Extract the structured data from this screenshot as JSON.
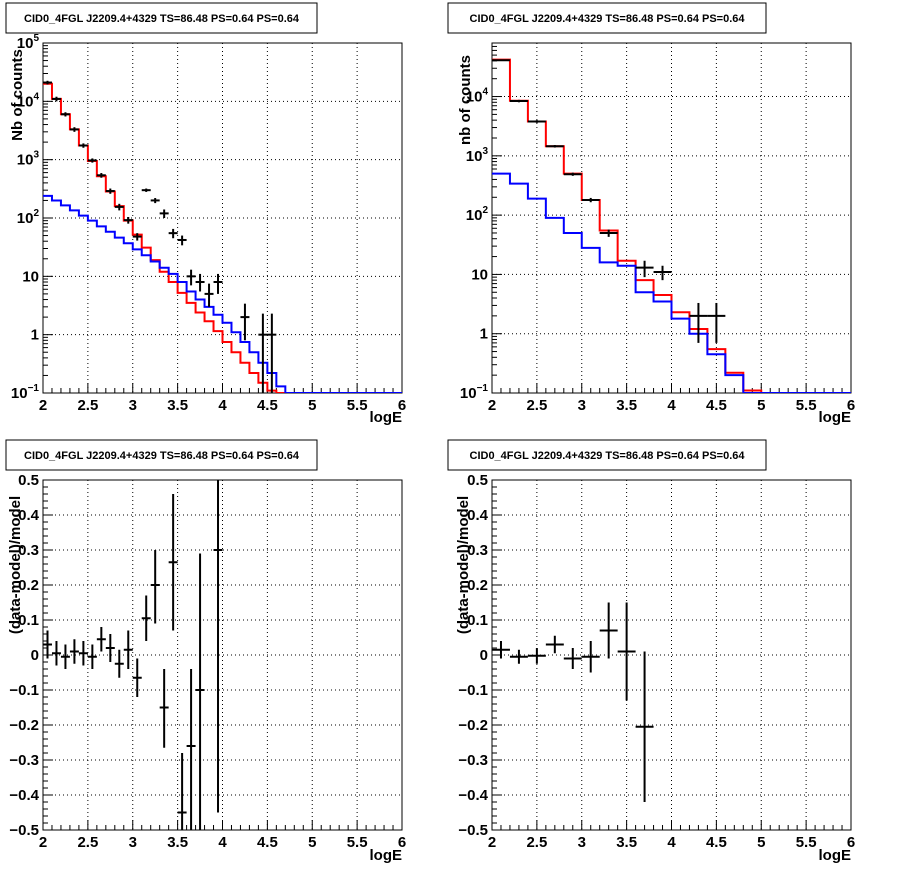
{
  "chart_data": [
    {
      "type": "line",
      "title": "CID0_4FGL J2209.4+4329 TS=86.48 PS=0.64 PS=0.64",
      "xlabel": "logE",
      "ylabel": "Nb of counts",
      "xlim": [
        2,
        6
      ],
      "ylim": [
        0.1,
        100000
      ],
      "yscale": "log",
      "grid": true,
      "x_ticks": [
        "2",
        "2.5",
        "3",
        "3.5",
        "4",
        "4.5",
        "5",
        "5.5",
        "6"
      ],
      "y_ticks": [
        {
          "v": 0.1,
          "label": "10",
          "sup": "−1"
        },
        {
          "v": 1,
          "label": "1",
          "sup": ""
        },
        {
          "v": 10,
          "label": "10",
          "sup": ""
        },
        {
          "v": 100,
          "label": "10",
          "sup": "2"
        },
        {
          "v": 1000,
          "label": "10",
          "sup": "3"
        },
        {
          "v": 10000,
          "label": "10",
          "sup": "4"
        },
        {
          "v": 100000,
          "label": "10",
          "sup": "5"
        }
      ],
      "bin_edges": [
        2.0,
        2.1,
        2.2,
        2.3,
        2.4,
        2.5,
        2.6,
        2.7,
        2.8,
        2.9,
        3.0,
        3.1,
        3.2,
        3.3,
        3.4,
        3.5,
        3.6,
        3.7,
        3.8,
        3.9,
        4.0,
        4.1,
        4.2,
        4.3,
        4.4,
        4.5,
        4.6,
        4.7,
        4.8,
        4.9,
        5.0,
        5.1,
        5.2,
        5.3,
        5.4,
        5.5,
        5.6,
        5.7,
        5.8,
        5.9,
        6.0
      ],
      "series": [
        {
          "color": "#ff0000",
          "kind": "step",
          "values": [
            20000,
            11000,
            6000,
            3300,
            1750,
            950,
            520,
            285,
            160,
            90,
            52,
            31,
            19,
            12,
            8,
            5.2,
            3.5,
            2.4,
            1.7,
            1.15,
            0.75,
            0.5,
            0.33,
            0.22,
            0.15,
            0.11,
            0.1,
            0.1,
            0.1,
            0.1,
            0.1,
            0.1,
            0.1,
            0.1,
            0.1,
            0.1,
            0.1,
            0.1,
            0.1,
            0.1
          ]
        },
        {
          "color": "#0000ff",
          "kind": "step",
          "values": [
            240,
            200,
            165,
            135,
            110,
            90,
            72,
            58,
            46,
            37,
            29,
            23,
            18,
            14,
            11,
            8,
            5.5,
            4,
            3,
            2.2,
            1.6,
            1.1,
            0.75,
            0.5,
            0.33,
            0.22,
            0.13,
            0.1,
            0.1,
            0.1,
            0.1,
            0.1,
            0.1,
            0.1,
            0.1,
            0.1,
            0.1,
            0.1,
            0.1,
            0.1
          ]
        },
        {
          "color": "#000000",
          "kind": "points",
          "points": [
            {
              "x": 2.05,
              "y": 21000,
              "lo": 19500,
              "hi": 22500
            },
            {
              "x": 2.15,
              "y": 11000,
              "lo": 10000,
              "hi": 12000
            },
            {
              "x": 2.25,
              "y": 6000,
              "lo": 5500,
              "hi": 6500
            },
            {
              "x": 2.35,
              "y": 3300,
              "lo": 3000,
              "hi": 3600
            },
            {
              "x": 2.45,
              "y": 1750,
              "lo": 1600,
              "hi": 1900
            },
            {
              "x": 2.55,
              "y": 970,
              "lo": 890,
              "hi": 1050
            },
            {
              "x": 2.65,
              "y": 540,
              "lo": 490,
              "hi": 590
            },
            {
              "x": 2.75,
              "y": 290,
              "lo": 260,
              "hi": 320
            },
            {
              "x": 2.85,
              "y": 155,
              "lo": 135,
              "hi": 175
            },
            {
              "x": 2.95,
              "y": 92,
              "lo": 80,
              "hi": 104
            },
            {
              "x": 3.05,
              "y": 48,
              "lo": 41,
              "hi": 55
            },
            {
              "x": 3.15,
              "y": 300,
              "lo": 280,
              "hi": 320
            },
            {
              "x": 3.25,
              "y": 200,
              "lo": 180,
              "hi": 220
            },
            {
              "x": 3.35,
              "y": 120,
              "lo": 100,
              "hi": 140
            },
            {
              "x": 3.45,
              "y": 55,
              "lo": 45,
              "hi": 65
            },
            {
              "x": 3.55,
              "y": 42,
              "lo": 34,
              "hi": 50
            },
            {
              "x": 3.65,
              "y": 10,
              "lo": 7,
              "hi": 13
            },
            {
              "x": 3.75,
              "y": 8,
              "lo": 5.5,
              "hi": 11
            },
            {
              "x": 3.85,
              "y": 5,
              "lo": 3,
              "hi": 7.5
            },
            {
              "x": 3.95,
              "y": 8,
              "lo": 5,
              "hi": 11
            },
            {
              "x": 4.25,
              "y": 2,
              "lo": 0.8,
              "hi": 3.4
            },
            {
              "x": 4.45,
              "y": 1,
              "lo": 0.1,
              "hi": 2.3
            },
            {
              "x": 4.55,
              "y": 1,
              "lo": 0.1,
              "hi": 2.3
            }
          ]
        }
      ]
    },
    {
      "type": "line",
      "title": "CID0_4FGL J2209.4+4329 TS=86.48 PS=0.64 PS=0.64",
      "xlabel": "logE",
      "ylabel": "nb of counts",
      "xlim": [
        2,
        6
      ],
      "ylim": [
        0.1,
        80000
      ],
      "yscale": "log",
      "grid": true,
      "x_ticks": [
        "2",
        "2.5",
        "3",
        "3.5",
        "4",
        "4.5",
        "5",
        "5.5",
        "6"
      ],
      "y_ticks": [
        {
          "v": 0.1,
          "label": "10",
          "sup": "−1"
        },
        {
          "v": 1,
          "label": "1",
          "sup": ""
        },
        {
          "v": 10,
          "label": "10",
          "sup": ""
        },
        {
          "v": 100,
          "label": "10",
          "sup": "2"
        },
        {
          "v": 1000,
          "label": "10",
          "sup": "3"
        },
        {
          "v": 10000,
          "label": "10",
          "sup": "4"
        }
      ],
      "bin_edges": [
        2.0,
        2.2,
        2.4,
        2.6,
        2.8,
        3.0,
        3.2,
        3.4,
        3.6,
        3.8,
        4.0,
        4.2,
        4.4,
        4.6,
        4.8,
        5.0,
        5.2,
        5.4,
        5.6,
        5.8,
        6.0
      ],
      "series": [
        {
          "color": "#ff0000",
          "kind": "step",
          "values": [
            42000,
            8500,
            3800,
            1450,
            500,
            180,
            55,
            17,
            8,
            4.5,
            2.3,
            1.2,
            0.55,
            0.22,
            0.11,
            0.1,
            0.1,
            0.1,
            0.1,
            0.1
          ]
        },
        {
          "color": "#0000ff",
          "kind": "step",
          "values": [
            500,
            340,
            190,
            90,
            50,
            28,
            16,
            14,
            5,
            3.5,
            1.8,
            1,
            0.45,
            0.2,
            0.1,
            0.1,
            0.1,
            0.1,
            0.1,
            0.1
          ]
        },
        {
          "color": "#000000",
          "kind": "points",
          "points": [
            {
              "x": 2.1,
              "y": 41000,
              "lo": 40000,
              "hi": 42000
            },
            {
              "x": 2.3,
              "y": 8400,
              "lo": 8000,
              "hi": 8800
            },
            {
              "x": 2.5,
              "y": 3800,
              "lo": 3600,
              "hi": 4000
            },
            {
              "x": 2.7,
              "y": 1450,
              "lo": 1380,
              "hi": 1520
            },
            {
              "x": 2.9,
              "y": 490,
              "lo": 460,
              "hi": 520
            },
            {
              "x": 3.1,
              "y": 180,
              "lo": 165,
              "hi": 195
            },
            {
              "x": 3.3,
              "y": 50,
              "lo": 43,
              "hi": 57
            },
            {
              "x": 3.7,
              "y": 13,
              "lo": 9,
              "hi": 17
            },
            {
              "x": 3.9,
              "y": 11,
              "lo": 8,
              "hi": 14
            },
            {
              "x": 4.3,
              "y": 2,
              "lo": 0.7,
              "hi": 3.3
            },
            {
              "x": 4.5,
              "y": 2,
              "lo": 0.7,
              "hi": 3.3
            }
          ]
        }
      ]
    },
    {
      "type": "scatter",
      "title": "CID0_4FGL J2209.4+4329 TS=86.48 PS=0.64 PS=0.64",
      "xlabel": "logE",
      "ylabel": "(data-model)/model",
      "xlim": [
        2,
        6
      ],
      "ylim": [
        -0.5,
        0.5
      ],
      "grid": true,
      "x_ticks": [
        "2",
        "2.5",
        "3",
        "3.5",
        "4",
        "4.5",
        "5",
        "5.5",
        "6"
      ],
      "y_ticks": [
        "−0.5",
        "−0.4",
        "−0.3",
        "−0.2",
        "−0.1",
        "0",
        "0.1",
        "0.2",
        "0.3",
        "0.4",
        "0.5"
      ],
      "points": [
        {
          "x": 2.05,
          "y": 0.03,
          "lo": -0.01,
          "hi": 0.07,
          "hw": 0.05
        },
        {
          "x": 2.15,
          "y": 0.005,
          "lo": -0.03,
          "hi": 0.04,
          "hw": 0.05
        },
        {
          "x": 2.25,
          "y": -0.005,
          "lo": -0.04,
          "hi": 0.03,
          "hw": 0.05
        },
        {
          "x": 2.35,
          "y": 0.01,
          "lo": -0.025,
          "hi": 0.045,
          "hw": 0.05
        },
        {
          "x": 2.45,
          "y": 0.005,
          "lo": -0.03,
          "hi": 0.04,
          "hw": 0.05
        },
        {
          "x": 2.55,
          "y": -0.005,
          "lo": -0.04,
          "hi": 0.03,
          "hw": 0.05
        },
        {
          "x": 2.65,
          "y": 0.045,
          "lo": 0.01,
          "hi": 0.08,
          "hw": 0.05
        },
        {
          "x": 2.75,
          "y": 0.02,
          "lo": -0.02,
          "hi": 0.06,
          "hw": 0.05
        },
        {
          "x": 2.85,
          "y": -0.025,
          "lo": -0.065,
          "hi": 0.015,
          "hw": 0.05
        },
        {
          "x": 2.95,
          "y": 0.015,
          "lo": -0.04,
          "hi": 0.07,
          "hw": 0.05
        },
        {
          "x": 3.05,
          "y": -0.065,
          "lo": -0.12,
          "hi": -0.01,
          "hw": 0.05
        },
        {
          "x": 3.15,
          "y": 0.105,
          "lo": 0.04,
          "hi": 0.17,
          "hw": 0.05
        },
        {
          "x": 3.25,
          "y": 0.2,
          "lo": 0.09,
          "hi": 0.3,
          "hw": 0.05
        },
        {
          "x": 3.35,
          "y": -0.15,
          "lo": -0.265,
          "hi": -0.04,
          "hw": 0.05
        },
        {
          "x": 3.45,
          "y": 0.265,
          "lo": 0.07,
          "hi": 0.46,
          "hw": 0.05
        },
        {
          "x": 3.55,
          "y": -0.45,
          "lo": -0.5,
          "hi": -0.28,
          "hw": 0.05
        },
        {
          "x": 3.65,
          "y": -0.26,
          "lo": -0.5,
          "hi": -0.04,
          "hw": 0.05
        },
        {
          "x": 3.75,
          "y": -0.1,
          "lo": -0.5,
          "hi": 0.29,
          "hw": 0.05
        },
        {
          "x": 3.95,
          "y": 0.3,
          "lo": -0.45,
          "hi": 0.5,
          "hw": 0.05
        }
      ]
    },
    {
      "type": "scatter",
      "title": "CID0_4FGL J2209.4+4329 TS=86.48 PS=0.64 PS=0.64",
      "xlabel": "logE",
      "ylabel": "(data-model)/model",
      "xlim": [
        2,
        6
      ],
      "ylim": [
        -0.5,
        0.5
      ],
      "grid": true,
      "x_ticks": [
        "2",
        "2.5",
        "3",
        "3.5",
        "4",
        "4.5",
        "5",
        "5.5",
        "6"
      ],
      "y_ticks": [
        "−0.5",
        "−0.4",
        "−0.3",
        "−0.2",
        "−0.1",
        "0",
        "0.1",
        "0.2",
        "0.3",
        "0.4",
        "0.5"
      ],
      "points": [
        {
          "x": 2.1,
          "y": 0.015,
          "lo": -0.01,
          "hi": 0.04,
          "hw": 0.1
        },
        {
          "x": 2.3,
          "y": -0.005,
          "lo": -0.025,
          "hi": 0.015,
          "hw": 0.1
        },
        {
          "x": 2.5,
          "y": -0.002,
          "lo": -0.025,
          "hi": 0.02,
          "hw": 0.1
        },
        {
          "x": 2.7,
          "y": 0.03,
          "lo": 0.005,
          "hi": 0.055,
          "hw": 0.1
        },
        {
          "x": 2.9,
          "y": -0.01,
          "lo": -0.04,
          "hi": 0.02,
          "hw": 0.1
        },
        {
          "x": 3.1,
          "y": -0.005,
          "lo": -0.05,
          "hi": 0.04,
          "hw": 0.1
        },
        {
          "x": 3.3,
          "y": 0.07,
          "lo": -0.01,
          "hi": 0.15,
          "hw": 0.1
        },
        {
          "x": 3.5,
          "y": 0.01,
          "lo": -0.13,
          "hi": 0.15,
          "hw": 0.1
        },
        {
          "x": 3.7,
          "y": -0.205,
          "lo": -0.42,
          "hi": 0.01,
          "hw": 0.1
        }
      ]
    }
  ]
}
